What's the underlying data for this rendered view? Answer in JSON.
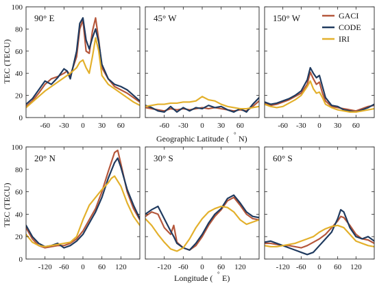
{
  "figure": {
    "ylabel": "TEC (TECU)",
    "top_xlabel": "Geographic Latitude (",
    "top_xlabel_unit": "N)",
    "bottom_xlabel": "Longitude (",
    "bottom_xlabel_unit": "E)",
    "degree_symbol": "°"
  },
  "legend": {
    "position": "top-right panel, top-right",
    "entries": [
      "GACI",
      "CODE",
      "IRI"
    ]
  },
  "colors": {
    "GACI": "#b5573b",
    "CODE": "#1f3a5f",
    "IRI": "#e3b02b"
  },
  "chart_data": [
    {
      "type": "line",
      "title": "90° E",
      "xlabel": "Geographic Latitude (°N)",
      "ylabel": "TEC (TECU)",
      "xlim": [
        -90,
        90
      ],
      "ylim": [
        0,
        100
      ],
      "xticks": [
        -60,
        -30,
        0,
        30,
        60
      ],
      "yticks": [
        0,
        20,
        40,
        60,
        80,
        100
      ],
      "series": [
        {
          "name": "GACI",
          "x": [
            -90,
            -80,
            -70,
            -60,
            -50,
            -40,
            -30,
            -25,
            -20,
            -10,
            -5,
            0,
            5,
            10,
            15,
            20,
            25,
            30,
            40,
            50,
            60,
            70,
            80,
            90
          ],
          "values": [
            10,
            15,
            22,
            30,
            35,
            37,
            40,
            42,
            38,
            55,
            80,
            88,
            60,
            58,
            78,
            90,
            70,
            45,
            35,
            28,
            25,
            22,
            18,
            14
          ]
        },
        {
          "name": "CODE",
          "x": [
            -90,
            -80,
            -70,
            -60,
            -50,
            -40,
            -30,
            -25,
            -20,
            -10,
            -5,
            0,
            5,
            10,
            15,
            20,
            25,
            30,
            40,
            50,
            60,
            70,
            80,
            90
          ],
          "values": [
            12,
            17,
            25,
            33,
            30,
            36,
            44,
            42,
            35,
            60,
            85,
            90,
            70,
            62,
            72,
            80,
            68,
            48,
            35,
            30,
            28,
            25,
            20,
            15
          ]
        },
        {
          "name": "IRI",
          "x": [
            -90,
            -80,
            -70,
            -60,
            -50,
            -40,
            -30,
            -20,
            -10,
            -5,
            0,
            5,
            10,
            15,
            20,
            25,
            30,
            40,
            50,
            60,
            70,
            80,
            90
          ],
          "values": [
            9,
            14,
            19,
            24,
            28,
            32,
            36,
            40,
            45,
            50,
            52,
            45,
            40,
            55,
            72,
            60,
            38,
            30,
            26,
            22,
            18,
            14,
            11
          ]
        }
      ]
    },
    {
      "type": "line",
      "title": "45° W",
      "xlabel": "Geographic Latitude (°N)",
      "ylabel": "TEC (TECU)",
      "xlim": [
        -90,
        90
      ],
      "ylim": [
        0,
        100
      ],
      "xticks": [
        -60,
        -30,
        0,
        30,
        60
      ],
      "yticks": [
        0,
        20,
        40,
        60,
        80,
        100
      ],
      "series": [
        {
          "name": "GACI",
          "x": [
            -90,
            -80,
            -70,
            -60,
            -50,
            -40,
            -30,
            -20,
            -10,
            0,
            10,
            20,
            30,
            40,
            50,
            60,
            70,
            80,
            90
          ],
          "values": [
            9,
            8,
            7,
            6,
            8,
            7,
            8,
            7,
            8,
            9,
            8,
            9,
            8,
            7,
            6,
            7,
            6,
            10,
            15
          ]
        },
        {
          "name": "CODE",
          "x": [
            -90,
            -80,
            -70,
            -60,
            -50,
            -40,
            -30,
            -20,
            -10,
            0,
            10,
            20,
            30,
            40,
            50,
            60,
            70,
            80,
            90
          ],
          "values": [
            11,
            9,
            6,
            5,
            10,
            5,
            9,
            6,
            9,
            8,
            11,
            9,
            10,
            7,
            5,
            8,
            5,
            12,
            18
          ]
        },
        {
          "name": "IRI",
          "x": [
            -90,
            -80,
            -70,
            -60,
            -50,
            -40,
            -30,
            -20,
            -10,
            0,
            10,
            20,
            30,
            40,
            50,
            60,
            70,
            80,
            90
          ],
          "values": [
            10,
            11,
            12,
            12,
            13,
            13,
            14,
            14,
            15,
            19,
            16,
            15,
            12,
            10,
            9,
            8,
            8,
            9,
            10
          ]
        }
      ]
    },
    {
      "type": "line",
      "title": "150° W",
      "xlabel": "Geographic Latitude (°N)",
      "ylabel": "TEC (TECU)",
      "xlim": [
        -90,
        90
      ],
      "ylim": [
        0,
        100
      ],
      "xticks": [
        -60,
        -30,
        0,
        30,
        60
      ],
      "yticks": [
        0,
        20,
        40,
        60,
        80,
        100
      ],
      "series": [
        {
          "name": "GACI",
          "x": [
            -90,
            -80,
            -70,
            -60,
            -50,
            -40,
            -30,
            -20,
            -15,
            -10,
            -5,
            0,
            5,
            10,
            20,
            30,
            40,
            50,
            60,
            70,
            80,
            90
          ],
          "values": [
            13,
            11,
            12,
            14,
            16,
            19,
            22,
            30,
            41,
            35,
            30,
            32,
            22,
            15,
            10,
            9,
            8,
            7,
            6,
            8,
            10,
            11
          ]
        },
        {
          "name": "CODE",
          "x": [
            -90,
            -80,
            -70,
            -60,
            -50,
            -40,
            -30,
            -20,
            -15,
            -10,
            -5,
            0,
            5,
            10,
            20,
            30,
            40,
            50,
            60,
            70,
            80,
            90
          ],
          "values": [
            14,
            12,
            13,
            15,
            17,
            20,
            24,
            34,
            45,
            40,
            36,
            38,
            28,
            18,
            11,
            10,
            7,
            6,
            5,
            7,
            9,
            12
          ]
        },
        {
          "name": "IRI",
          "x": [
            -90,
            -80,
            -70,
            -60,
            -50,
            -40,
            -30,
            -20,
            -15,
            -10,
            -5,
            0,
            5,
            10,
            20,
            30,
            40,
            50,
            60,
            70,
            80,
            90
          ],
          "values": [
            12,
            10,
            9,
            10,
            13,
            16,
            20,
            28,
            33,
            26,
            22,
            23,
            18,
            12,
            9,
            7,
            6,
            5,
            5,
            6,
            7,
            8
          ]
        }
      ]
    },
    {
      "type": "line",
      "title": "20° N",
      "xlabel": "Longitude (°E)",
      "ylabel": "TEC (TECU)",
      "xlim": [
        -180,
        180
      ],
      "ylim": [
        0,
        100
      ],
      "xticks": [
        -120,
        -60,
        0,
        60,
        120
      ],
      "yticks": [
        0,
        20,
        40,
        60,
        80,
        100
      ],
      "series": [
        {
          "name": "GACI",
          "x": [
            -180,
            -160,
            -140,
            -120,
            -100,
            -80,
            -60,
            -40,
            -20,
            0,
            20,
            40,
            60,
            80,
            100,
            110,
            120,
            140,
            160,
            180
          ],
          "values": [
            28,
            18,
            12,
            10,
            11,
            12,
            12,
            14,
            18,
            25,
            35,
            45,
            60,
            78,
            95,
            97,
            85,
            60,
            45,
            35
          ]
        },
        {
          "name": "CODE",
          "x": [
            -180,
            -160,
            -140,
            -120,
            -100,
            -80,
            -60,
            -40,
            -20,
            0,
            20,
            40,
            60,
            80,
            100,
            110,
            120,
            140,
            160,
            180
          ],
          "values": [
            30,
            20,
            14,
            11,
            12,
            14,
            10,
            12,
            16,
            22,
            32,
            42,
            55,
            72,
            86,
            90,
            82,
            62,
            48,
            36
          ]
        },
        {
          "name": "IRI",
          "x": [
            -180,
            -160,
            -140,
            -120,
            -100,
            -80,
            -60,
            -40,
            -20,
            0,
            20,
            40,
            60,
            80,
            90,
            100,
            120,
            140,
            160,
            180
          ],
          "values": [
            22,
            15,
            12,
            11,
            12,
            13,
            14,
            15,
            20,
            35,
            48,
            55,
            62,
            68,
            72,
            74,
            65,
            50,
            38,
            30
          ]
        }
      ]
    },
    {
      "type": "line",
      "title": "30° S",
      "xlabel": "Longitude (°E)",
      "ylabel": "TEC (TECU)",
      "xlim": [
        -180,
        180
      ],
      "ylim": [
        0,
        100
      ],
      "xticks": [
        -120,
        -60,
        0,
        60,
        120
      ],
      "yticks": [
        0,
        20,
        40,
        60,
        80,
        100
      ],
      "series": [
        {
          "name": "GACI",
          "x": [
            -180,
            -160,
            -140,
            -120,
            -100,
            -90,
            -80,
            -60,
            -40,
            -20,
            0,
            20,
            40,
            60,
            80,
            100,
            120,
            140,
            160,
            180
          ],
          "values": [
            38,
            42,
            40,
            28,
            22,
            30,
            15,
            10,
            8,
            12,
            20,
            30,
            38,
            44,
            52,
            55,
            48,
            40,
            36,
            35
          ]
        },
        {
          "name": "CODE",
          "x": [
            -180,
            -160,
            -140,
            -120,
            -100,
            -90,
            -80,
            -60,
            -40,
            -20,
            0,
            20,
            40,
            60,
            80,
            100,
            120,
            140,
            160,
            180
          ],
          "values": [
            40,
            44,
            47,
            36,
            25,
            20,
            14,
            10,
            8,
            14,
            22,
            32,
            40,
            45,
            54,
            57,
            50,
            42,
            38,
            37
          ]
        },
        {
          "name": "IRI",
          "x": [
            -180,
            -160,
            -140,
            -120,
            -100,
            -80,
            -60,
            -40,
            -20,
            0,
            20,
            40,
            60,
            80,
            100,
            120,
            140,
            160,
            180
          ],
          "values": [
            36,
            30,
            22,
            15,
            9,
            7,
            10,
            18,
            28,
            36,
            42,
            45,
            47,
            46,
            42,
            35,
            31,
            33,
            35
          ]
        }
      ]
    },
    {
      "type": "line",
      "title": "60° S",
      "xlabel": "Longitude (°E)",
      "ylabel": "TEC (TECU)",
      "xlim": [
        -180,
        180
      ],
      "ylim": [
        0,
        100
      ],
      "xticks": [
        -120,
        -60,
        0,
        60,
        120
      ],
      "yticks": [
        0,
        20,
        40,
        60,
        80,
        100
      ],
      "series": [
        {
          "name": "GACI",
          "x": [
            -180,
            -160,
            -140,
            -120,
            -100,
            -80,
            -60,
            -40,
            -20,
            0,
            20,
            40,
            60,
            70,
            80,
            100,
            120,
            140,
            160,
            180
          ],
          "values": [
            14,
            14,
            13,
            12,
            12,
            11,
            10,
            12,
            15,
            18,
            22,
            28,
            34,
            38,
            37,
            30,
            22,
            18,
            17,
            14
          ]
        },
        {
          "name": "CODE",
          "x": [
            -180,
            -160,
            -140,
            -120,
            -100,
            -80,
            -60,
            -40,
            -20,
            0,
            20,
            40,
            60,
            70,
            80,
            100,
            120,
            140,
            160,
            180
          ],
          "values": [
            15,
            16,
            14,
            12,
            10,
            8,
            6,
            4,
            6,
            12,
            18,
            24,
            36,
            44,
            42,
            28,
            20,
            18,
            20,
            16
          ]
        },
        {
          "name": "IRI",
          "x": [
            -180,
            -160,
            -140,
            -120,
            -100,
            -80,
            -60,
            -40,
            -20,
            0,
            20,
            40,
            60,
            80,
            100,
            120,
            140,
            160,
            180
          ],
          "values": [
            12,
            11,
            11,
            12,
            13,
            14,
            16,
            18,
            20,
            24,
            27,
            29,
            30,
            28,
            22,
            16,
            14,
            12,
            11
          ]
        }
      ]
    }
  ]
}
